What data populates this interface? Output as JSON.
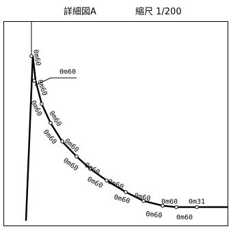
{
  "header": {
    "title": "詳細図A",
    "scale": "縮尺 1/200"
  },
  "diagram": {
    "measure_labels": [
      "0m60",
      "0m60",
      "0m60",
      "0m60",
      "0m60",
      "0m60",
      "0m60",
      "0m60",
      "0m60",
      "0m60",
      "0m60",
      "0m60",
      "0m60",
      "0m60",
      "0m60",
      "0m60",
      "0m31",
      "0m60"
    ]
  }
}
